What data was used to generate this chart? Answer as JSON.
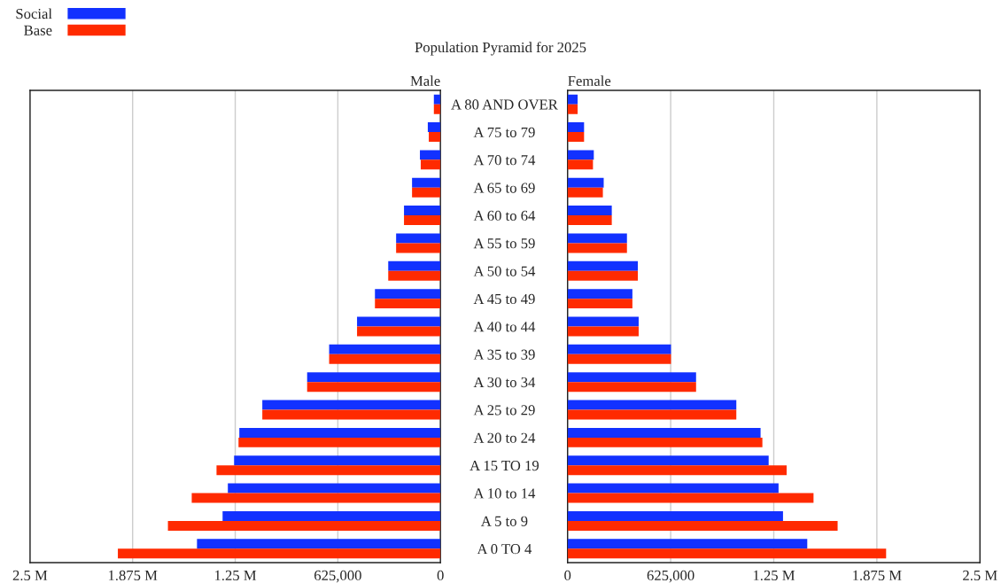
{
  "chart_data": [
    {
      "type": "bar",
      "orientation": "horizontal",
      "title": "Male",
      "annotations": [
        "Population Pyramid for 2025"
      ],
      "categories": [
        "A 80 AND OVER",
        "A 75 to 79",
        "A 70 to 74",
        "A 65 to 69",
        "A 60 to 64",
        "A 55 to 59",
        "A 50 to 54",
        "A 45 to 49",
        "A 40 to 44",
        "A 35 to 39",
        "A 30 to 34",
        "A 25 to 29",
        "A 20 to 24",
        "A 15 TO 19",
        "A 10 to 14",
        "A 5 to 9",
        "A 0 TO 4"
      ],
      "series": [
        {
          "name": "Social",
          "color": "#1231ff",
          "values": [
            40000,
            77000,
            125000,
            173000,
            222000,
            270000,
            318000,
            399000,
            508000,
            678000,
            812000,
            1085000,
            1225000,
            1257000,
            1295000,
            1327000,
            1483000
          ]
        },
        {
          "name": "Base",
          "color": "#ff2a00",
          "values": [
            40000,
            71000,
            120000,
            173000,
            222000,
            270000,
            318000,
            399000,
            508000,
            678000,
            812000,
            1085000,
            1230000,
            1364000,
            1515000,
            1660000,
            1965000
          ]
        }
      ],
      "xlim": [
        2500000,
        0
      ],
      "xticks": [
        {
          "value": 2500000,
          "label": "2.5 M"
        },
        {
          "value": 1875000,
          "label": "1.875 M"
        },
        {
          "value": 1250000,
          "label": "1.25 M"
        },
        {
          "value": 625000,
          "label": "625,000"
        },
        0
      ],
      "grid": "x",
      "legend": "top"
    },
    {
      "type": "bar",
      "orientation": "horizontal",
      "title": "Female",
      "categories": [
        null,
        null,
        null,
        null,
        null,
        null,
        null,
        null,
        null,
        null,
        null,
        null,
        null,
        null,
        null,
        null,
        null
      ],
      "series": [
        {
          "color": "#1231ff",
          "values": [
            61000,
            100000,
            159000,
            219000,
            268000,
            360000,
            426000,
            393000,
            431000,
            627000,
            779000,
            1023000,
            1170000,
            1219000,
            1279000,
            1306000,
            1453000
          ]
        },
        {
          "color": "#ff2a00",
          "values": [
            61000,
            100000,
            154000,
            214000,
            268000,
            360000,
            426000,
            393000,
            431000,
            627000,
            779000,
            1023000,
            1181000,
            1328000,
            1491000,
            1637000,
            1931000
          ]
        }
      ],
      "xlim": [
        0,
        2500000
      ],
      "xticks": [
        0,
        {
          "value": 625000,
          "label": "625,000"
        },
        {
          "value": 1250000,
          "label": "1.25 M"
        },
        {
          "value": 1875000,
          "label": "1.875 M"
        },
        {
          "value": 2500000,
          "label": "2.5 M"
        }
      ],
      "grid": "x",
      "tick_labels": "x"
    }
  ]
}
